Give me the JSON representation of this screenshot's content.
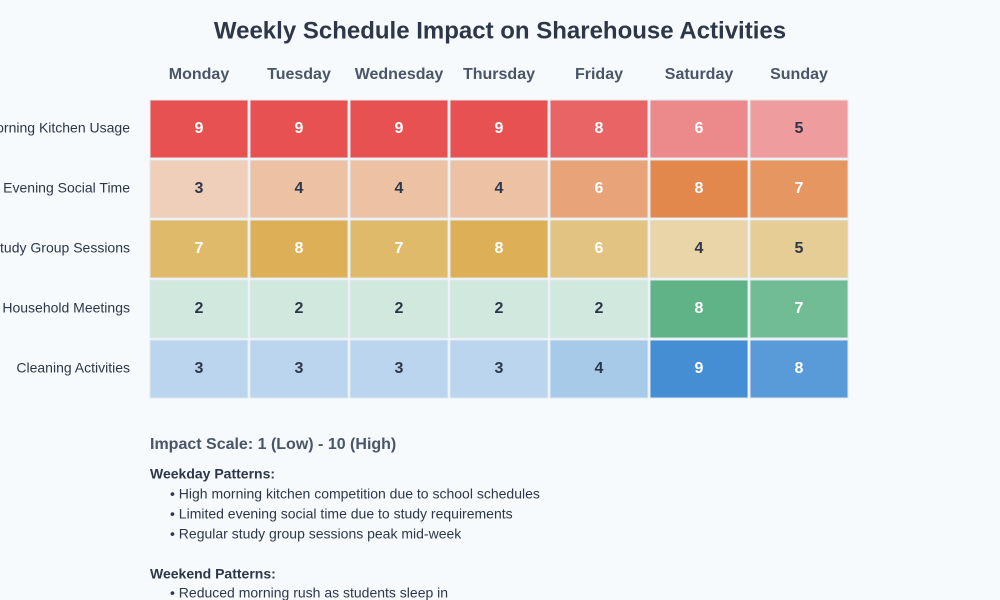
{
  "chart_data": {
    "type": "heatmap",
    "title": "Weekly Schedule Impact on Sharehouse Activities",
    "x": [
      "Monday",
      "Tuesday",
      "Wednesday",
      "Thursday",
      "Friday",
      "Saturday",
      "Sunday"
    ],
    "series": [
      {
        "name": "Morning Kitchen Usage",
        "color": "#e53e3e",
        "values": [
          9,
          9,
          9,
          9,
          8,
          6,
          5
        ]
      },
      {
        "name": "Evening Social Time",
        "color": "#dd6b20",
        "values": [
          3,
          4,
          4,
          4,
          6,
          8,
          7
        ]
      },
      {
        "name": "Study Group Sessions",
        "color": "#d69e2e",
        "values": [
          7,
          8,
          7,
          8,
          6,
          4,
          5
        ]
      },
      {
        "name": "Household Meetings",
        "color": "#38a169",
        "values": [
          2,
          2,
          2,
          2,
          2,
          8,
          7
        ]
      },
      {
        "name": "Cleaning Activities",
        "color": "#3182ce",
        "values": [
          3,
          3,
          3,
          3,
          4,
          9,
          8
        ]
      }
    ]
  },
  "notes": {
    "scale": "Impact Scale: 1 (Low) - 10 (High)",
    "sections": [
      {
        "heading": "Weekday Patterns:",
        "items": [
          "• High morning kitchen competition due to school schedules",
          "• Limited evening social time due to study requirements",
          "• Regular study group sessions peak mid-week"
        ]
      },
      {
        "heading": "Weekend Patterns:",
        "items": [
          "• Reduced morning rush as students sleep in"
        ]
      }
    ]
  }
}
